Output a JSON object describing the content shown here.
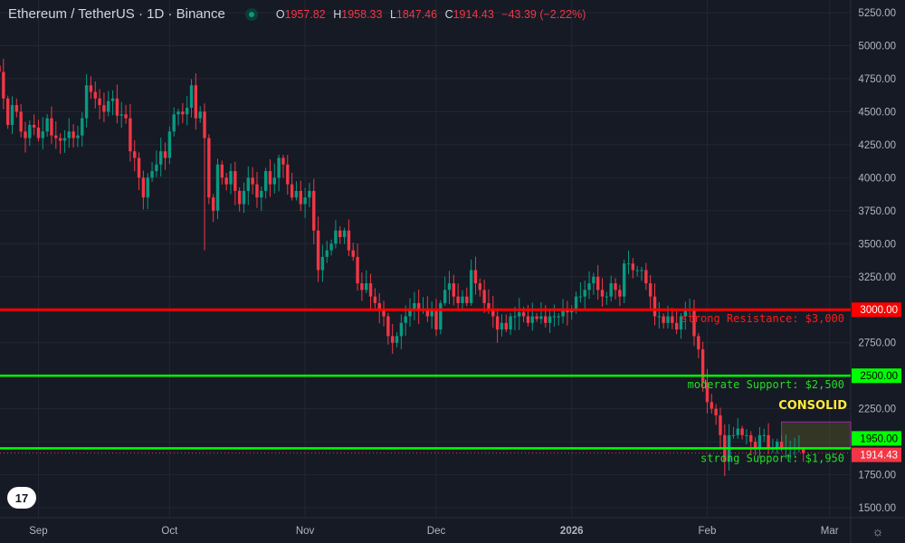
{
  "header": {
    "symbol": "Ethereum / TetherUS · 1D · Binance",
    "o_label": "O",
    "o": "1957.82",
    "h_label": "H",
    "h": "1958.33",
    "l_label": "L",
    "l": "1847.46",
    "c_label": "C",
    "c": "1914.43",
    "change": "−43.39 (−2.22%)"
  },
  "colors": {
    "up": "#089981",
    "down": "#f23645",
    "resistance": "#ff0000",
    "support": "#00ff00",
    "background": "#161a25"
  },
  "chart_data": {
    "type": "candlestick",
    "start_date": "2025-08-23",
    "closes": [
      4800,
      4600,
      4400,
      4550,
      4500,
      4350,
      4300,
      4400,
      4380,
      4300,
      4350,
      4450,
      4320,
      4300,
      4280,
      4300,
      4350,
      4300,
      4320,
      4450,
      4700,
      4650,
      4600,
      4550,
      4500,
      4580,
      4600,
      4470,
      4480,
      4450,
      4200,
      4150,
      4000,
      3850,
      4000,
      4050,
      4100,
      4200,
      4150,
      4350,
      4480,
      4500,
      4480,
      4530,
      4700,
      4450,
      4500,
      4300,
      3850,
      3750,
      4100,
      4000,
      3950,
      4050,
      3900,
      3800,
      3900,
      4000,
      3950,
      3850,
      3900,
      4050,
      3950,
      4000,
      4150,
      4100,
      3950,
      3850,
      3900,
      3800,
      3850,
      3900,
      3600,
      3300,
      3400,
      3450,
      3500,
      3600,
      3550,
      3600,
      3450,
      3400,
      3200,
      3150,
      3200,
      3100,
      3050,
      3000,
      2950,
      2800,
      2750,
      2800,
      2900,
      2950,
      3000,
      3050,
      3000,
      3000,
      2950,
      3000,
      2850,
      3050,
      3150,
      3200,
      3100,
      3050,
      3100,
      3050,
      3300,
      3200,
      3150,
      3050,
      3000,
      2950,
      2850,
      2900,
      2850,
      2950,
      2950,
      2980,
      2950,
      2900,
      2950,
      2930,
      2950,
      2900,
      2950,
      2950,
      2950,
      3000,
      2980,
      3000,
      3100,
      3100,
      3150,
      3200,
      3250,
      3150,
      3100,
      3100,
      3200,
      3150,
      3100,
      3350,
      3350,
      3300,
      3300,
      3300,
      3200,
      3100,
      2950,
      2950,
      2900,
      2950,
      2900,
      2850,
      2950,
      3000,
      3000,
      2800,
      2700,
      2450,
      2300,
      2250,
      2200,
      2050,
      1850,
      2050,
      2050,
      2100,
      2050,
      2050,
      2000,
      1950,
      2050,
      2050,
      1950,
      1950,
      2000,
      1950,
      1950,
      1950,
      1950,
      1957.82,
      1914.43
    ],
    "last_candle": {
      "open": 1957.82,
      "high": 1958.33,
      "low": 1847.46,
      "close": 1914.43
    },
    "ylim": [
      1500,
      5250
    ],
    "y_ticks": [
      "5250.00",
      "5000.00",
      "4750.00",
      "4500.00",
      "4250.00",
      "4000.00",
      "3750.00",
      "3500.00",
      "3250.00",
      "2750.00",
      "2250.00",
      "1750.00",
      "1500.00"
    ],
    "x_ticks": [
      {
        "label": "Sep",
        "date": "2025-09-01"
      },
      {
        "label": "Oct",
        "date": "2025-10-01"
      },
      {
        "label": "Nov",
        "date": "2025-11-01"
      },
      {
        "label": "Dec",
        "date": "2025-12-01"
      },
      {
        "label": "2026",
        "date": "2026-01-01"
      },
      {
        "label": "Feb",
        "date": "2026-02-01"
      },
      {
        "label": "Mar",
        "date": "2026-03-01"
      }
    ],
    "levels": [
      {
        "price": 3000,
        "tag": "3000.00",
        "label": "strong Resistance: $3,000",
        "color": "#ff0000"
      },
      {
        "price": 2500,
        "tag": "2500.00",
        "label": "moderate Support: $2,500",
        "color": "#00ff00"
      },
      {
        "price": 1950,
        "tag": "1950.00",
        "label": "strong Support: $1,950",
        "color": "#00ff00"
      }
    ],
    "last_price_tag": "1914.43",
    "consolidation": {
      "label": "CONSOLID",
      "price_top": 2150,
      "price_bottom": 1950,
      "start_date": "2026-02-18"
    }
  },
  "logo": "TV"
}
